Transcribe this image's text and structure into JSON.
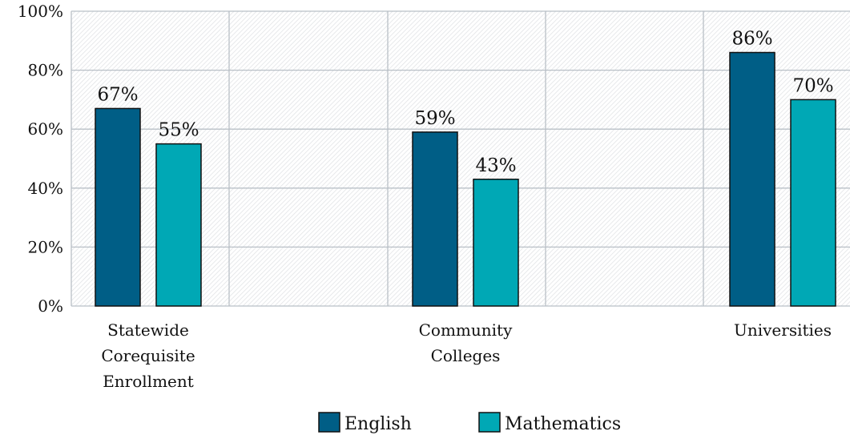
{
  "chart_data": {
    "type": "bar",
    "categories": [
      [
        "Statewide",
        "Corequisite",
        "Enrollment"
      ],
      [
        "Community",
        "Colleges"
      ],
      [
        "Universities"
      ]
    ],
    "series": [
      {
        "name": "English",
        "values": [
          67,
          59,
          86
        ],
        "labels": [
          "67%",
          "59%",
          "86%"
        ],
        "color": "#005e86"
      },
      {
        "name": "Mathematics",
        "values": [
          55,
          43,
          70
        ],
        "labels": [
          "55%",
          "43%",
          "70%"
        ],
        "color": "#00a8b5"
      }
    ],
    "y_ticks": [
      0,
      20,
      40,
      60,
      80,
      100
    ],
    "y_tick_labels": [
      "0%",
      "20%",
      "40%",
      "60%",
      "80%",
      "100%"
    ],
    "ylim": [
      0,
      100
    ],
    "grid": true,
    "legend_position": "bottom-center",
    "plot_background": "hatched-light-gray"
  }
}
